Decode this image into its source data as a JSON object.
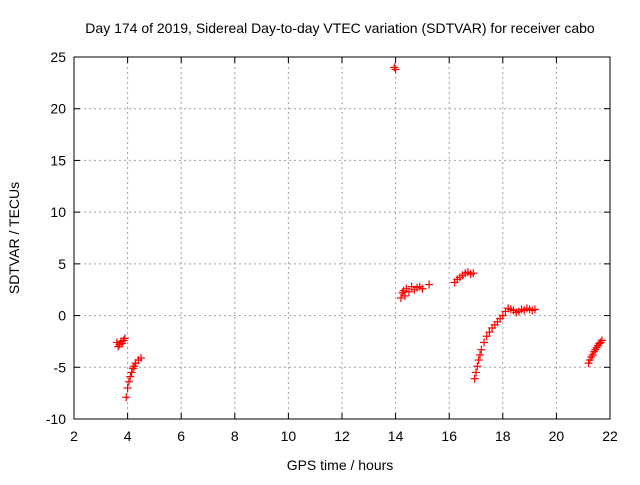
{
  "chart_data": {
    "type": "scatter",
    "title": "Day 174 of 2019, Sidereal Day-to-day VTEC variation (SDTVAR) for receiver cabo",
    "xlabel": "GPS time / hours",
    "ylabel": "SDTVAR / TECUs",
    "xlim": [
      2,
      22
    ],
    "ylim": [
      -10,
      25
    ],
    "xticks": [
      2,
      4,
      6,
      8,
      10,
      12,
      14,
      16,
      18,
      20,
      22
    ],
    "yticks": [
      -10,
      -5,
      0,
      5,
      10,
      15,
      20,
      25
    ],
    "grid": true,
    "marker": "+",
    "series": [
      {
        "name": "SDTVAR",
        "color": "#ff0000",
        "segments": [
          {
            "x": [
              3.6,
              3.65,
              3.7,
              3.75,
              3.8,
              3.85,
              3.9
            ],
            "y": [
              -2.6,
              -3.0,
              -2.8,
              -2.5,
              -2.7,
              -2.4,
              -2.2
            ]
          },
          {
            "x": [
              3.95,
              4.0,
              4.05,
              4.1,
              4.15,
              4.2,
              4.25,
              4.3,
              4.4,
              4.5
            ],
            "y": [
              -7.9,
              -7.0,
              -6.4,
              -5.9,
              -5.5,
              -5.1,
              -4.9,
              -4.6,
              -4.3,
              -4.1
            ]
          },
          {
            "x": [
              13.95,
              14.0
            ],
            "y": [
              24.0,
              23.8
            ]
          },
          {
            "x": [
              14.2,
              14.25,
              14.3,
              14.35,
              14.4,
              14.5,
              14.6,
              14.7,
              14.8,
              14.9,
              15.0,
              15.25
            ],
            "y": [
              1.7,
              2.2,
              2.4,
              1.9,
              2.6,
              2.3,
              2.8,
              2.5,
              2.7,
              2.8,
              2.6,
              3.0
            ]
          },
          {
            "x": [
              16.2,
              16.3,
              16.4,
              16.5,
              16.6,
              16.7,
              16.8,
              16.9
            ],
            "y": [
              3.2,
              3.5,
              3.7,
              3.9,
              4.1,
              4.2,
              4.0,
              4.1
            ]
          },
          {
            "x": [
              16.95,
              17.0,
              17.05,
              17.1,
              17.15,
              17.2,
              17.3,
              17.4,
              17.5,
              17.6,
              17.7,
              17.8,
              17.9,
              18.0,
              18.1,
              18.2,
              18.3,
              18.4,
              18.5,
              18.6,
              18.7,
              18.8,
              18.9,
              19.0,
              19.1,
              19.2
            ],
            "y": [
              -6.1,
              -5.5,
              -4.9,
              -4.3,
              -3.8,
              -3.3,
              -2.6,
              -2.0,
              -1.6,
              -1.2,
              -0.9,
              -0.6,
              -0.3,
              0.0,
              0.4,
              0.7,
              0.6,
              0.5,
              0.3,
              0.4,
              0.6,
              0.5,
              0.7,
              0.6,
              0.5,
              0.6
            ]
          },
          {
            "x": [
              21.2,
              21.25,
              21.3,
              21.35,
              21.4,
              21.45,
              21.5,
              21.55,
              21.6,
              21.65,
              21.7
            ],
            "y": [
              -4.6,
              -4.3,
              -4.0,
              -3.8,
              -3.5,
              -3.3,
              -3.1,
              -2.9,
              -2.7,
              -2.6,
              -2.4
            ]
          }
        ]
      }
    ]
  }
}
